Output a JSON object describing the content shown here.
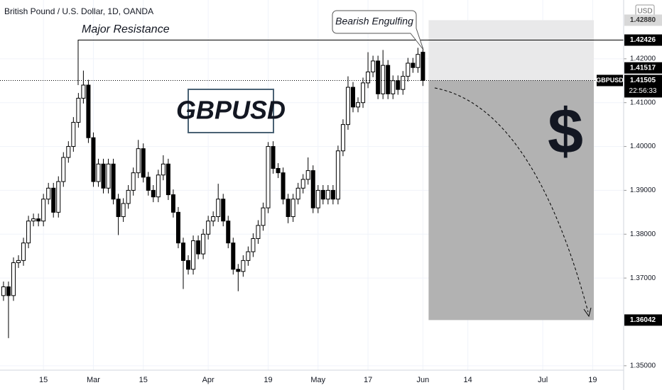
{
  "chart_data": {
    "type": "candlestick",
    "title": "British Pound / U.S. Dollar, 1D, OANDA",
    "currency": "USD",
    "symbol": "GBPUSD",
    "open": [
      1.366,
      1.368,
      1.366,
      1.3735,
      1.374,
      1.378,
      1.383,
      1.3835,
      1.383,
      1.388,
      1.3905,
      1.385,
      1.392,
      1.3975,
      1.4,
      1.4055,
      1.411,
      1.414,
      1.402,
      1.392,
      1.396,
      1.3905,
      1.396,
      1.388,
      1.384,
      1.387,
      1.39,
      1.394,
      1.3995,
      1.393,
      1.39,
      1.3885,
      1.3935,
      1.396,
      1.389,
      1.385,
      1.378,
      1.374,
      1.372,
      1.3785,
      1.3755,
      1.38,
      1.383,
      1.384,
      1.388,
      1.383,
      1.378,
      1.372,
      1.3715,
      1.374,
      1.376,
      1.379,
      1.382,
      1.386,
      1.4,
      1.395,
      1.394,
      1.388,
      1.384,
      1.388,
      1.3905,
      1.3925,
      1.3945,
      1.386,
      1.39,
      1.388,
      1.39,
      1.388,
      1.399,
      1.405,
      1.4135,
      1.409,
      1.41,
      1.4145,
      1.417,
      1.4195,
      1.412,
      1.4185,
      1.412,
      1.415,
      1.413,
      1.416,
      1.419,
      1.418,
      1.4215
    ],
    "high": [
      1.3692,
      1.3692,
      1.3747,
      1.3752,
      1.3792,
      1.3842,
      1.3847,
      1.3847,
      1.3892,
      1.3917,
      1.3917,
      1.3932,
      1.3987,
      1.4012,
      1.4067,
      1.4122,
      1.4173,
      1.4152,
      1.4032,
      1.3972,
      1.3972,
      1.3972,
      1.3972,
      1.3892,
      1.3882,
      1.3912,
      1.3952,
      1.4015,
      1.4007,
      1.3942,
      1.3912,
      1.3947,
      1.398,
      1.3972,
      1.3902,
      1.3862,
      1.3792,
      1.3752,
      1.3797,
      1.3797,
      1.3812,
      1.3842,
      1.3852,
      1.3915,
      1.3892,
      1.3842,
      1.3792,
      1.3732,
      1.3752,
      1.3772,
      1.3802,
      1.3832,
      1.3872,
      1.401,
      1.4012,
      1.3962,
      1.3952,
      1.3892,
      1.3892,
      1.3917,
      1.3937,
      1.3975,
      1.3957,
      1.3912,
      1.3912,
      1.3912,
      1.3912,
      1.4002,
      1.4062,
      1.416,
      1.4147,
      1.4112,
      1.4157,
      1.4215,
      1.4207,
      1.4207,
      1.422,
      1.4197,
      1.4162,
      1.4162,
      1.4172,
      1.4202,
      1.4202,
      1.4225,
      1.4225
    ],
    "low": [
      1.3648,
      1.3563,
      1.3648,
      1.3723,
      1.3728,
      1.3768,
      1.3818,
      1.3818,
      1.3818,
      1.3868,
      1.3838,
      1.3838,
      1.3908,
      1.3963,
      1.3988,
      1.4043,
      1.4098,
      1.4008,
      1.3908,
      1.3908,
      1.3893,
      1.3893,
      1.3868,
      1.3798,
      1.3828,
      1.3858,
      1.3888,
      1.3928,
      1.3918,
      1.3888,
      1.3873,
      1.3873,
      1.3923,
      1.3878,
      1.3838,
      1.3768,
      1.3675,
      1.3708,
      1.3708,
      1.3743,
      1.3743,
      1.3788,
      1.3818,
      1.3828,
      1.3818,
      1.3768,
      1.3708,
      1.367,
      1.3703,
      1.3728,
      1.3748,
      1.3778,
      1.3808,
      1.3848,
      1.3938,
      1.3928,
      1.3868,
      1.3825,
      1.3828,
      1.3868,
      1.3893,
      1.3913,
      1.3848,
      1.3848,
      1.3868,
      1.3868,
      1.3868,
      1.3868,
      1.3978,
      1.4038,
      1.4078,
      1.4078,
      1.4088,
      1.4133,
      1.4158,
      1.4108,
      1.4108,
      1.4108,
      1.4108,
      1.4118,
      1.4118,
      1.4148,
      1.4168,
      1.4168,
      1.4138
    ],
    "close": [
      1.368,
      1.366,
      1.3735,
      1.374,
      1.378,
      1.383,
      1.3835,
      1.383,
      1.388,
      1.3905,
      1.385,
      1.392,
      1.3975,
      1.4,
      1.4055,
      1.411,
      1.414,
      1.402,
      1.392,
      1.396,
      1.3905,
      1.396,
      1.388,
      1.384,
      1.387,
      1.39,
      1.394,
      1.3995,
      1.393,
      1.39,
      1.3885,
      1.3935,
      1.396,
      1.389,
      1.385,
      1.378,
      1.374,
      1.372,
      1.3785,
      1.3755,
      1.38,
      1.383,
      1.384,
      1.388,
      1.383,
      1.378,
      1.372,
      1.3715,
      1.374,
      1.376,
      1.379,
      1.382,
      1.386,
      1.4,
      1.395,
      1.394,
      1.388,
      1.384,
      1.388,
      1.3905,
      1.3925,
      1.3945,
      1.386,
      1.39,
      1.388,
      1.39,
      1.388,
      1.399,
      1.405,
      1.4135,
      1.409,
      1.41,
      1.4145,
      1.417,
      1.4195,
      1.412,
      1.4185,
      1.412,
      1.415,
      1.413,
      1.416,
      1.419,
      1.418,
      1.421,
      1.41505
    ],
    "up_color": "#ffffff",
    "down_color": "#000000",
    "xlim": [
      -0.7,
      124.2
    ],
    "xticks": [
      {
        "value": 8,
        "label": "15"
      },
      {
        "value": 18,
        "label": "Mar"
      },
      {
        "value": 28,
        "label": "15"
      },
      {
        "value": 41,
        "label": "Apr"
      },
      {
        "value": 53,
        "label": "19"
      },
      {
        "value": 63,
        "label": "May"
      },
      {
        "value": 73,
        "label": "17"
      },
      {
        "value": 84,
        "label": "Jun"
      },
      {
        "value": 93,
        "label": "14"
      },
      {
        "value": 108,
        "label": "Jul"
      },
      {
        "value": 118,
        "label": "19"
      }
    ],
    "ylim": [
      1.349,
      1.4334
    ],
    "yticks": [
      {
        "value": 1.42,
        "label": "1.42000"
      },
      {
        "value": 1.41,
        "label": "1.41000"
      },
      {
        "value": 1.4,
        "label": "1.40000"
      },
      {
        "value": 1.39,
        "label": "1.39000"
      },
      {
        "value": 1.38,
        "label": "1.38000"
      },
      {
        "value": 1.37,
        "label": "1.37000"
      },
      {
        "value": 1.35,
        "label": "1.35000"
      }
    ],
    "grid": true,
    "annotations": {
      "resistance": {
        "text": "Major Resistance",
        "value": 1.42426
      },
      "pattern": "Bearish Engulfing",
      "glyph": "$"
    },
    "position": {
      "entry": 1.41505,
      "stop": {
        "value": 1.4288,
        "label": "1.42880"
      },
      "target": 1.36042
    },
    "last_price": 1.41505,
    "bid_price": 1.41517,
    "countdown": "22:56:33"
  }
}
